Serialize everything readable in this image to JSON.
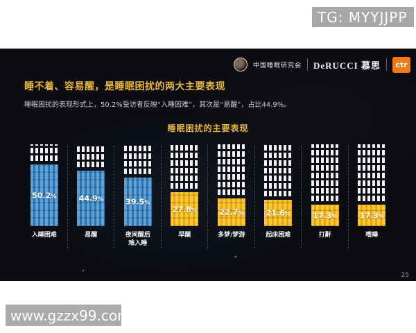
{
  "overlays": {
    "tg_label": "TG: MYYJJPP",
    "watermark": "www.gzzx99.com"
  },
  "slide": {
    "header": {
      "org_name": "中国睡眠研究会",
      "brand_name": "DeRUCCI 慕思",
      "ctr_label": "ctr"
    },
    "title": "睡不着、容易醒，是睡眠困扰的两大主要表现",
    "subtitle": "睡眠困扰的表现形式上，50.2%受访者反映“入睡困难”，其次是“易醒”，占比44.9%。",
    "page_number": "25"
  },
  "chart_data": {
    "type": "bar",
    "title": "睡眠困扰的主要表现",
    "categories": [
      "入睡困难",
      "易醒",
      "夜间醒后\n难入睡",
      "早醒",
      "多梦/梦游",
      "起床困难",
      "打鼾",
      "嗜睡"
    ],
    "values": [
      50.2,
      44.9,
      39.5,
      27.8,
      22.7,
      21.6,
      17.3,
      17.3
    ],
    "value_suffix": "%",
    "bar_palette": [
      "blue",
      "blue",
      "blue",
      "yellow",
      "yellow",
      "yellow",
      "yellow",
      "yellow"
    ],
    "colors": {
      "blue_base": "#2f74ad",
      "blue_light": "#5ea2d9",
      "yellow_base": "#e8a714",
      "yellow_light": "#ffc733",
      "empty_block": "#f2f2f2",
      "accent_title": "#e8b63c"
    },
    "ylim": [
      0,
      100
    ],
    "grid": false,
    "legend": null,
    "style_note": "pictogram bars built of small blocks; unfilled portion shown as white blocks above the colored fill"
  }
}
